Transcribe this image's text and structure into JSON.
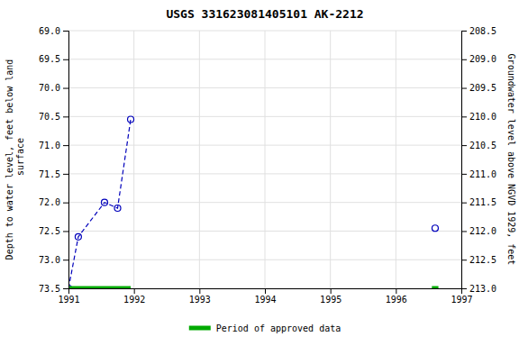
{
  "chart_data": {
    "type": "line",
    "title": "USGS 331623081405101 AK-2212",
    "y_label": "Depth to water level, feet below land\n surface",
    "y2_label": "Groundwater level above NGVD 1929, feet",
    "xlim": [
      1991.0,
      1997.0
    ],
    "xticks": [
      1991,
      1992,
      1993,
      1994,
      1995,
      1996,
      1997
    ],
    "ylim": [
      73.5,
      69.0
    ],
    "yticks": [
      {
        "value": 69.0,
        "label": "69.0"
      },
      69.5,
      {
        "value": 70.0,
        "label": "70.0"
      },
      70.5,
      {
        "value": 71.0,
        "label": "71.0"
      },
      71.5,
      {
        "value": 72.0,
        "label": "72.0"
      },
      72.5,
      {
        "value": 73.0,
        "label": "73.0"
      },
      73.5
    ],
    "y2lim": [
      213.0,
      208.5
    ],
    "y2ticks": [
      {
        "value": 213.0,
        "label": "213.0"
      },
      212.5,
      {
        "value": 212.0,
        "label": "212.0"
      },
      211.5,
      {
        "value": 211.0,
        "label": "211.0"
      },
      210.5,
      {
        "value": 210.0,
        "label": "210.0"
      },
      209.5,
      {
        "value": 209.0,
        "label": "209.0"
      },
      208.5
    ],
    "grid": true,
    "legend": "bottom",
    "series": [
      {
        "type": "line",
        "x": [
          1991.0,
          1991.15,
          1991.55,
          1991.75,
          1991.95
        ],
        "values": [
          73.5,
          72.6,
          72.0,
          72.1,
          70.55
        ],
        "color": "#0000bb",
        "line_style": "dashed",
        "marker": "circle"
      },
      {
        "type": "line",
        "x": [
          1996.6
        ],
        "values": [
          72.45
        ],
        "color": "#0000bb",
        "line_style": "none",
        "marker": "circle"
      },
      {
        "type": "interval",
        "name": "Period of approved data",
        "x_start": [
          1991.0,
          1996.55
        ],
        "x_end": [
          1991.95,
          1996.65
        ],
        "values": [
          73.5,
          73.5
        ],
        "color": "#00aa00"
      }
    ]
  }
}
